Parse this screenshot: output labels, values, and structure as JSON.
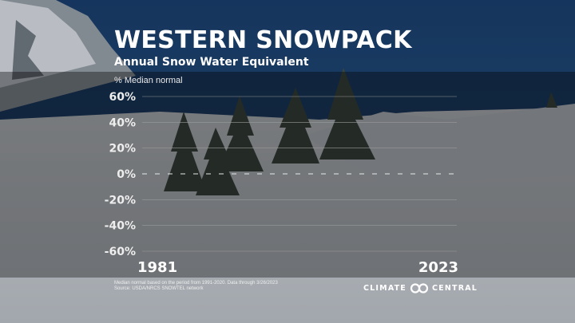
{
  "header": {
    "title": "WESTERN SNOWPACK",
    "subtitle": "Annual Snow Water Equivalent"
  },
  "chart_data": {
    "type": "bar",
    "title": "WESTERN SNOWPACK",
    "subtitle": "Annual Snow Water Equivalent",
    "ylabel": "% Median normal",
    "xlabel": "",
    "y_ticks": [
      "60%",
      "40%",
      "20%",
      "0%",
      "-20%",
      "-40%",
      "-60%"
    ],
    "ylim": [
      -60,
      60
    ],
    "x_range_labels": [
      "1981",
      "2023"
    ],
    "categories": [],
    "values": [],
    "grid": true
  },
  "footer": {
    "note_line1": "Median normal based on the period from 1991-2020. Data through 3/26/2023",
    "note_line2": "Source: USDA/NRCS SNOWTEL network"
  },
  "logo": {
    "left": "CLIMATE",
    "right": "CENTRAL",
    "icon": "climate-central-logo-icon"
  }
}
